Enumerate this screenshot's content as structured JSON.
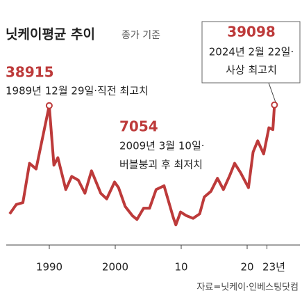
{
  "chart_data": {
    "type": "line",
    "title": "닛케이평균 추이",
    "subtitle": "종가 기준",
    "annotations": [
      {
        "value": "38915",
        "text": [
          "1989년 12월 29일·직전 최고치"
        ]
      },
      {
        "value": "7054",
        "text": [
          "2009년 3월 10일·",
          "버블붕괴 후 최저치"
        ]
      },
      {
        "value": "39098",
        "text": [
          "2024년 2월 22일·",
          "사상 최고치"
        ]
      }
    ],
    "source": "자료=닛케이·인베스팅닷컴",
    "x": [
      1984,
      1985,
      1986,
      1987,
      1988,
      1989.99,
      1990.7,
      1991.3,
      1992.5,
      1993.4,
      1994.4,
      1995.4,
      1996.4,
      1997.8,
      1998.7,
      1999.9,
      2000.5,
      2001.5,
      2002.6,
      2003.3,
      2004.3,
      2005.2,
      2006.2,
      2007.4,
      2008.8,
      2009.19,
      2009.9,
      2010.8,
      2011.8,
      2012.8,
      2013.5,
      2014.5,
      2015.5,
      2016.4,
      2017.3,
      2018.1,
      2019,
      2020.2,
      2020.9,
      2021.6,
      2022.5,
      2023.3,
      2023.9,
      2024.14
    ],
    "series": [
      {
        "name": "닛케이평균",
        "color": "#bd3a3a",
        "values": [
          10000,
          12500,
          13000,
          23500,
          22000,
          38915,
          23000,
          25000,
          16500,
          20000,
          19000,
          15500,
          21500,
          15500,
          14000,
          18500,
          17000,
          12000,
          9500,
          8500,
          11500,
          11500,
          16500,
          17500,
          9000,
          7054,
          10500,
          9500,
          8800,
          10000,
          14500,
          16000,
          19500,
          16500,
          20000,
          23500,
          21000,
          17000,
          26500,
          29500,
          26000,
          33000,
          32500,
          39098
        ]
      }
    ],
    "xlim": [
      1983.5,
      2028.5
    ],
    "xticks": [
      1990,
      2000,
      {
        "value": 2010,
        "label": "10"
      },
      {
        "value": 2020,
        "label": "20"
      },
      {
        "value": 2023,
        "label": "23년"
      }
    ],
    "ylim": [
      0,
      45000
    ]
  }
}
